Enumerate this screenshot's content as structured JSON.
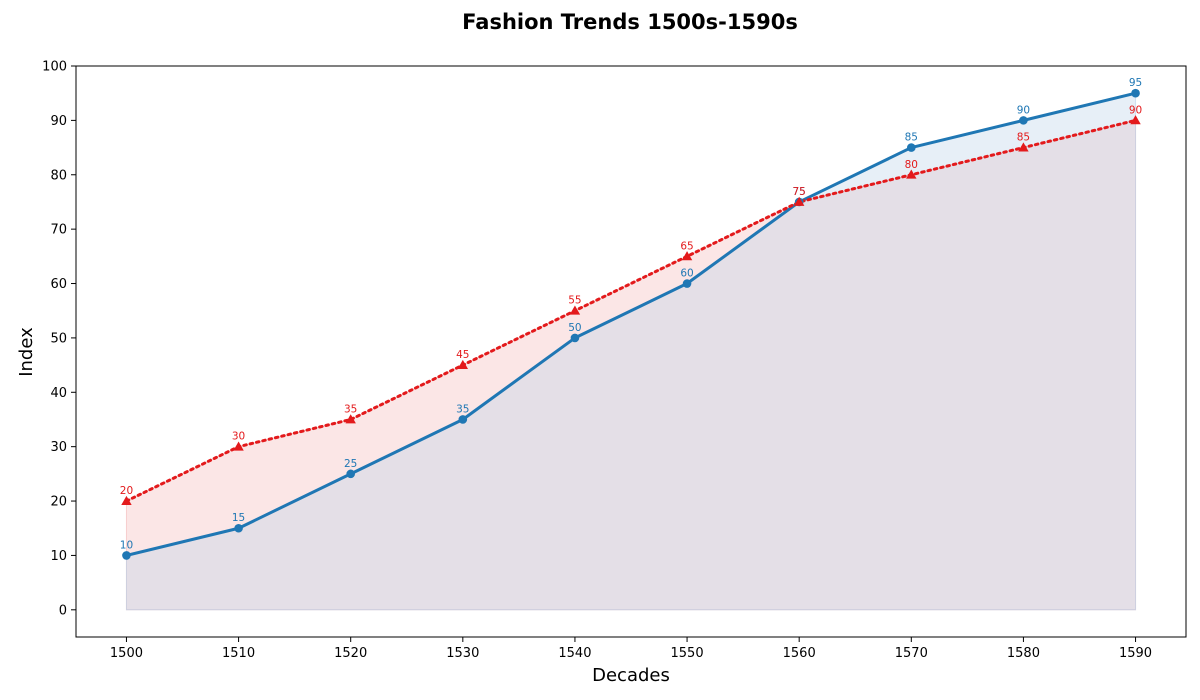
{
  "chart_data": {
    "type": "line",
    "title": "Fashion Trends 1500s-1590s",
    "xlabel": "Decades",
    "ylabel": "Index",
    "x": [
      1500,
      1510,
      1520,
      1530,
      1540,
      1550,
      1560,
      1570,
      1580,
      1590
    ],
    "xlim": [
      1495.5,
      1594.5
    ],
    "ylim": [
      -5,
      100
    ],
    "yticks": [
      0,
      10,
      20,
      30,
      40,
      50,
      60,
      70,
      80,
      90,
      100
    ],
    "grid": false,
    "legend": "none",
    "area_fill_to_zero": true,
    "series": [
      {
        "values": [
          10,
          15,
          25,
          35,
          50,
          60,
          75,
          85,
          90,
          95
        ],
        "color": "#1f77b4",
        "line_style": "solid",
        "marker": "circle",
        "fill_color": "#b9d0e8"
      },
      {
        "values": [
          20,
          30,
          35,
          45,
          55,
          65,
          75,
          80,
          85,
          90
        ],
        "color": "#e31a1c",
        "line_style": "dotted",
        "marker": "triangle",
        "fill_color": "#f4b6b6"
      }
    ]
  }
}
